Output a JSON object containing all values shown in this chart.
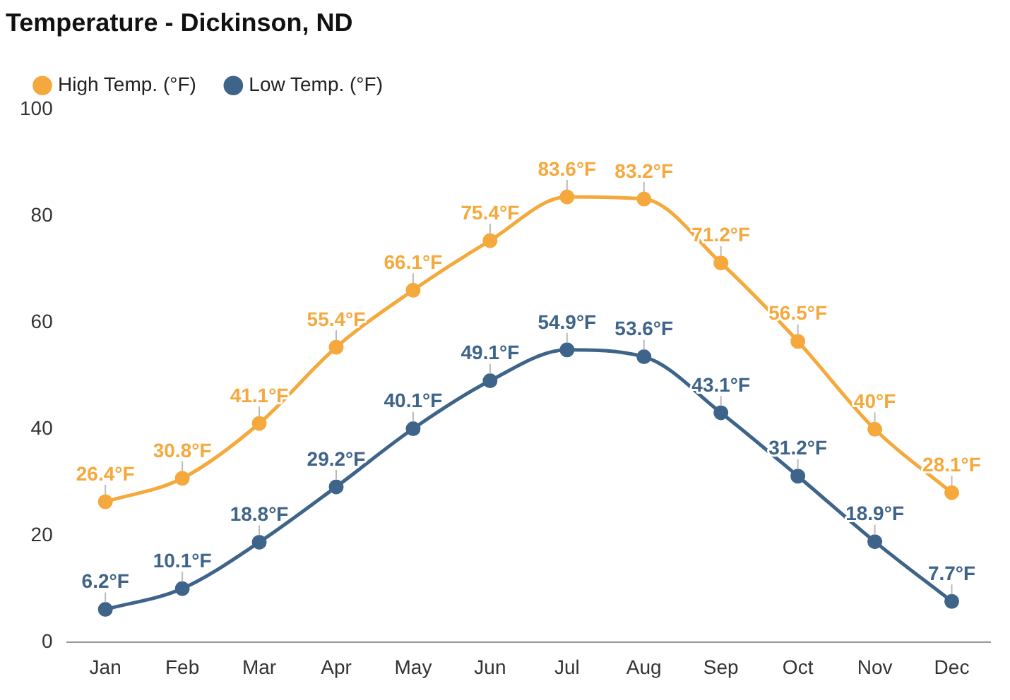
{
  "chart_data": {
    "type": "line",
    "title": "Temperature - Dickinson, ND",
    "categories": [
      "Jan",
      "Feb",
      "Mar",
      "Apr",
      "May",
      "Jun",
      "Jul",
      "Aug",
      "Sep",
      "Oct",
      "Nov",
      "Dec"
    ],
    "series": [
      {
        "name": "High Temp. (°F)",
        "color": "#f5a93d",
        "values": [
          26.4,
          30.8,
          41.1,
          55.4,
          66.1,
          75.4,
          83.6,
          83.2,
          71.2,
          56.5,
          40,
          28.1
        ],
        "value_labels": [
          "26.4°F",
          "30.8°F",
          "41.1°F",
          "55.4°F",
          "66.1°F",
          "75.4°F",
          "83.6°F",
          "83.2°F",
          "71.2°F",
          "56.5°F",
          "40°F",
          "28.1°F"
        ]
      },
      {
        "name": "Low Temp. (°F)",
        "color": "#3e6489",
        "values": [
          6.2,
          10.1,
          18.8,
          29.2,
          40.1,
          49.1,
          54.9,
          53.6,
          43.1,
          31.2,
          18.9,
          7.7
        ],
        "value_labels": [
          "6.2°F",
          "10.1°F",
          "18.8°F",
          "29.2°F",
          "40.1°F",
          "49.1°F",
          "54.9°F",
          "53.6°F",
          "43.1°F",
          "31.2°F",
          "18.9°F",
          "7.7°F"
        ]
      }
    ],
    "ylim": [
      0,
      100
    ],
    "yticks": [
      0,
      20,
      40,
      60,
      80,
      100
    ],
    "grid": false,
    "legend": "top left",
    "marker": "circle",
    "line_style": "solid"
  }
}
